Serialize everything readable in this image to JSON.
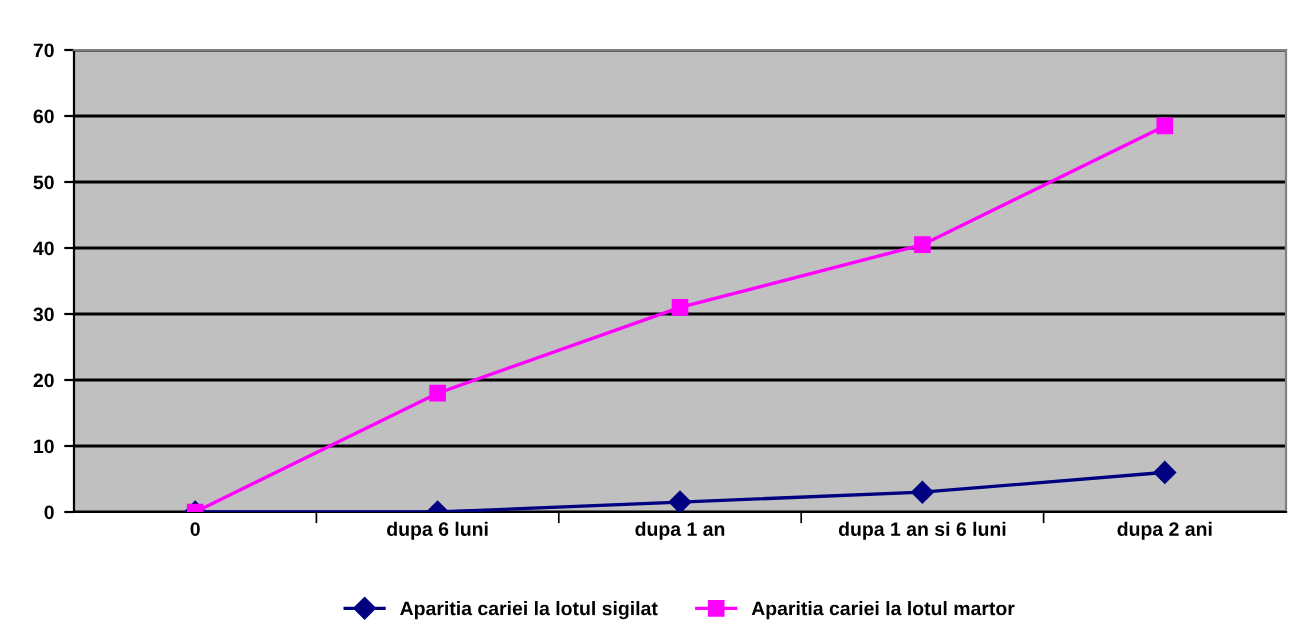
{
  "chart_data": {
    "type": "line",
    "categories": [
      "0",
      "dupa 6 luni",
      "dupa 1 an",
      "dupa 1 an si 6 luni",
      "dupa 2 ani"
    ],
    "series": [
      {
        "name": "Aparitia cariei la lotul sigilat",
        "color": "#000080",
        "marker": "diamond",
        "values": [
          0,
          0,
          1.5,
          3,
          6
        ]
      },
      {
        "name": "Aparitia cariei la lotul martor",
        "color": "#ff00ff",
        "marker": "square",
        "values": [
          0,
          18,
          31,
          40.5,
          58.5
        ]
      }
    ],
    "ylim": [
      0,
      70
    ],
    "yticks": [
      0,
      10,
      20,
      30,
      40,
      50,
      60,
      70
    ],
    "grid": "y",
    "legend": "bottom"
  }
}
